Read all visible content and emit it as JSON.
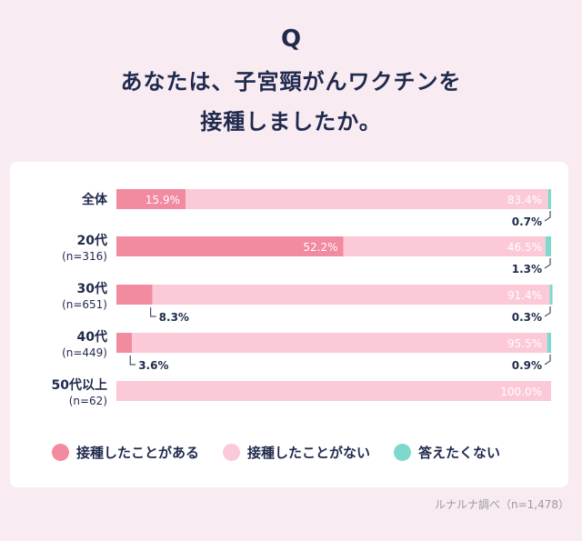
{
  "header": {
    "q_mark": "Q",
    "title_line1": "あなたは、子宮頸がんワクチンを",
    "title_line2": "接種しましたか。"
  },
  "colors": {
    "vaccinated": "#f28aa0",
    "not_vaccinated": "#fcc9d9",
    "no_answer": "#7ed9cc"
  },
  "legend": [
    {
      "label": "接種したことがある",
      "color": "#f28aa0"
    },
    {
      "label": "接種したことがない",
      "color": "#fcc9d9"
    },
    {
      "label": "答えたくない",
      "color": "#7ed9cc"
    }
  ],
  "source": "ルナルナ調べ（n=1,478）",
  "chart_data": {
    "type": "bar",
    "orientation": "horizontal",
    "stacked": true,
    "xlim": [
      0,
      100
    ],
    "categories": [
      {
        "label": "全体",
        "sublabel": ""
      },
      {
        "label": "20代",
        "sublabel": "(n=316)"
      },
      {
        "label": "30代",
        "sublabel": "(n=651)"
      },
      {
        "label": "40代",
        "sublabel": "(n=449)"
      },
      {
        "label": "50代以上",
        "sublabel": "(n=62)"
      }
    ],
    "series": [
      {
        "name": "接種したことがある",
        "values": [
          15.9,
          52.2,
          8.3,
          3.6,
          0
        ],
        "labels": [
          "15.9%",
          "52.2%",
          "8.3%",
          "3.6%",
          ""
        ]
      },
      {
        "name": "接種したことがない",
        "values": [
          83.4,
          46.5,
          91.4,
          95.5,
          100.0
        ],
        "labels": [
          "83.4%",
          "46.5%",
          "91.4%",
          "95.5%",
          "100.0%"
        ]
      },
      {
        "name": "答えたくない",
        "values": [
          0.7,
          1.3,
          0.3,
          0.9,
          0
        ],
        "labels": [
          "0.7%",
          "1.3%",
          "0.3%",
          "0.9%",
          ""
        ]
      }
    ]
  }
}
